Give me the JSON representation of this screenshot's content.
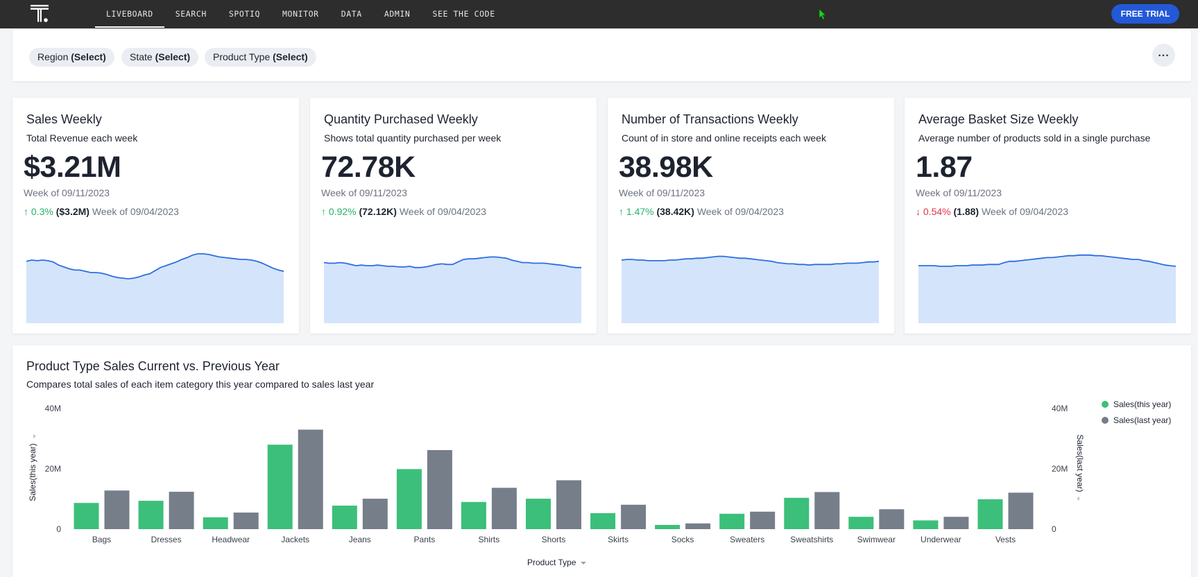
{
  "nav": {
    "items": [
      {
        "label": "LIVEBOARD",
        "active": true
      },
      {
        "label": "SEARCH",
        "active": false
      },
      {
        "label": "SPOTIQ",
        "active": false
      },
      {
        "label": "MONITOR",
        "active": false
      },
      {
        "label": "DATA",
        "active": false
      },
      {
        "label": "ADMIN",
        "active": false
      },
      {
        "label": "SEE THE CODE",
        "active": false
      }
    ],
    "trial_label": "FREE TRIAL",
    "logo_icon": "thoughtspot-logo-icon"
  },
  "filters": {
    "chips": [
      {
        "name": "Region",
        "value": "(Select)"
      },
      {
        "name": "State",
        "value": "(Select)"
      },
      {
        "name": "Product Type",
        "value": "(Select)"
      }
    ],
    "more_icon": "more-horizontal-icon"
  },
  "kpis": [
    {
      "title": "Sales Weekly",
      "subtitle": "Total Revenue each week",
      "value": "$3.21M",
      "week": "Week of 09/11/2023",
      "change_pct": "0.3%",
      "direction": "up",
      "prev_value": "($3.2M)",
      "prev_week": "Week of 09/04/2023",
      "trend": [
        58,
        60,
        59,
        60,
        59,
        57,
        52,
        49,
        46,
        44,
        44,
        42,
        40,
        40,
        39,
        37,
        34,
        32,
        31,
        30,
        31,
        33,
        36,
        38,
        43,
        48,
        51,
        54,
        57,
        61,
        64,
        68,
        70,
        70,
        69,
        67,
        65,
        64,
        63,
        62,
        61,
        61,
        60,
        58,
        55,
        51,
        47,
        44,
        42
      ]
    },
    {
      "title": "Quantity Purchased Weekly",
      "subtitle": "Shows total quantity purchased per week",
      "value": "72.78K",
      "week": "Week of 09/11/2023",
      "change_pct": "0.92%",
      "direction": "up",
      "prev_value": "(72.12K)",
      "prev_week": "Week of 09/04/2023",
      "trend": [
        56,
        55,
        55,
        56,
        55,
        53,
        51,
        52,
        51,
        51,
        52,
        51,
        50,
        50,
        49,
        49,
        50,
        48,
        48,
        49,
        51,
        53,
        54,
        53,
        53,
        57,
        61,
        62,
        62,
        63,
        64,
        65,
        65,
        64,
        63,
        60,
        58,
        56,
        56,
        55,
        55,
        55,
        54,
        53,
        52,
        51,
        49,
        48,
        48
      ]
    },
    {
      "title": "Number of Transactions Weekly",
      "subtitle": "Count of in store and online receipts each week",
      "value": "38.98K",
      "week": "Week of 09/11/2023",
      "change_pct": "1.47%",
      "direction": "up",
      "prev_value": "(38.42K)",
      "prev_week": "Week of 09/04/2023",
      "trend": [
        60,
        61,
        61,
        60,
        60,
        59,
        59,
        59,
        59,
        60,
        60,
        61,
        62,
        62,
        63,
        63,
        64,
        65,
        66,
        66,
        65,
        64,
        63,
        63,
        62,
        61,
        60,
        59,
        58,
        56,
        55,
        54,
        54,
        53,
        53,
        52,
        53,
        53,
        53,
        53,
        54,
        54,
        55,
        55,
        55,
        56,
        57,
        57,
        58
      ]
    },
    {
      "title": "Average Basket Size Weekly",
      "subtitle": "Average number of products sold in a single purchase",
      "value": "1.87",
      "week": "Week of 09/11/2023",
      "change_pct": "0.54%",
      "direction": "down",
      "prev_value": "(1.88)",
      "prev_week": "Week of 09/04/2023",
      "trend": [
        51,
        51,
        51,
        51,
        50,
        50,
        50,
        51,
        51,
        51,
        52,
        52,
        52,
        53,
        53,
        53,
        56,
        58,
        58,
        59,
        60,
        61,
        62,
        63,
        64,
        64,
        65,
        66,
        67,
        67,
        68,
        68,
        68,
        67,
        67,
        66,
        65,
        64,
        63,
        62,
        61,
        61,
        59,
        58,
        56,
        54,
        52,
        51,
        50
      ]
    }
  ],
  "chart_data": {
    "type": "bar",
    "title": "Product Type Sales Current vs. Previous Year",
    "subtitle": "Compares total sales of each item category this year compared to sales last year",
    "xlabel": "Product Type",
    "ylabel_left": "Sales(this year)",
    "ylabel_right": "Sales(last year)",
    "ylim": [
      0,
      40000000
    ],
    "yticks": [
      "0",
      "20M",
      "40M"
    ],
    "legend_position": "top-right",
    "categories": [
      "Bags",
      "Dresses",
      "Headwear",
      "Jackets",
      "Jeans",
      "Pants",
      "Shirts",
      "Shorts",
      "Skirts",
      "Socks",
      "Sweaters",
      "Sweatshirts",
      "Swimwear",
      "Underwear",
      "Vests"
    ],
    "series": [
      {
        "name": "Sales(this year)",
        "color": "#3cbf7a",
        "values": [
          8700000,
          9400000,
          3900000,
          28000000,
          7800000,
          19900000,
          9000000,
          10100000,
          5300000,
          1400000,
          5100000,
          10400000,
          4100000,
          2900000,
          9900000
        ]
      },
      {
        "name": "Sales(last year)",
        "color": "#767e8a",
        "values": [
          12800000,
          12400000,
          5500000,
          33000000,
          10100000,
          26200000,
          13700000,
          16200000,
          8100000,
          1900000,
          5800000,
          12300000,
          6600000,
          4100000,
          12100000
        ]
      }
    ]
  },
  "colors": {
    "accent": "#2359d7",
    "spark_line": "#2d6ee0",
    "spark_fill": "#d4e4fb",
    "up": "#28b06a",
    "down": "#e0344a"
  }
}
